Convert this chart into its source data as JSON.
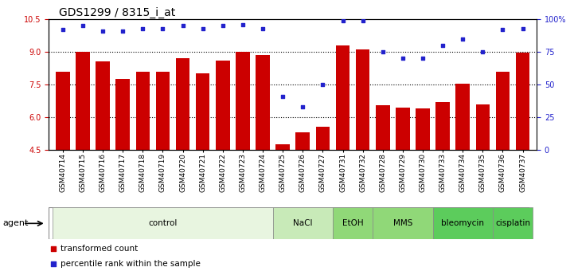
{
  "title": "GDS1299 / 8315_i_at",
  "samples": [
    "GSM40714",
    "GSM40715",
    "GSM40716",
    "GSM40717",
    "GSM40718",
    "GSM40719",
    "GSM40720",
    "GSM40721",
    "GSM40722",
    "GSM40723",
    "GSM40724",
    "GSM40725",
    "GSM40726",
    "GSM40727",
    "GSM40731",
    "GSM40732",
    "GSM40728",
    "GSM40729",
    "GSM40730",
    "GSM40733",
    "GSM40734",
    "GSM40735",
    "GSM40736",
    "GSM40737"
  ],
  "bar_values": [
    8.1,
    9.0,
    8.55,
    7.75,
    8.1,
    8.1,
    8.7,
    8.0,
    8.6,
    9.0,
    8.85,
    4.75,
    5.3,
    5.55,
    9.3,
    9.1,
    6.55,
    6.45,
    6.4,
    6.7,
    7.55,
    6.6,
    8.1,
    8.95
  ],
  "percentile_values": [
    92,
    95,
    91,
    91,
    93,
    93,
    95,
    93,
    95,
    96,
    93,
    41,
    33,
    50,
    99,
    99,
    75,
    70,
    70,
    80,
    85,
    75,
    92,
    93
  ],
  "ylim_left": [
    4.5,
    10.5
  ],
  "ylim_right": [
    0,
    100
  ],
  "yticks_left": [
    4.5,
    6.0,
    7.5,
    9.0,
    10.5
  ],
  "yticks_right": [
    0,
    25,
    50,
    75,
    100
  ],
  "ytick_labels_right": [
    "0",
    "25",
    "50",
    "75",
    "100%"
  ],
  "hlines": [
    6.0,
    7.5,
    9.0
  ],
  "bar_color": "#CC0000",
  "dot_color": "#2222CC",
  "agent_groups": [
    {
      "label": "control",
      "start": 0,
      "end": 10,
      "color": "#e8f5e0"
    },
    {
      "label": "NaCl",
      "start": 11,
      "end": 13,
      "color": "#c8eab8"
    },
    {
      "label": "EtOH",
      "start": 14,
      "end": 15,
      "color": "#90d878"
    },
    {
      "label": "MMS",
      "start": 16,
      "end": 18,
      "color": "#90d878"
    },
    {
      "label": "bleomycin",
      "start": 19,
      "end": 21,
      "color": "#5ccc5c"
    },
    {
      "label": "cisplatin",
      "start": 22,
      "end": 23,
      "color": "#5ccc5c"
    }
  ],
  "legend_items": [
    {
      "label": "transformed count",
      "color": "#CC0000"
    },
    {
      "label": "percentile rank within the sample",
      "color": "#2222CC"
    }
  ],
  "title_fontsize": 10,
  "tick_fontsize": 7,
  "bar_width": 0.7,
  "xtick_fontsize": 6.5,
  "agent_fontsize": 7.5,
  "agent_label": "agent"
}
